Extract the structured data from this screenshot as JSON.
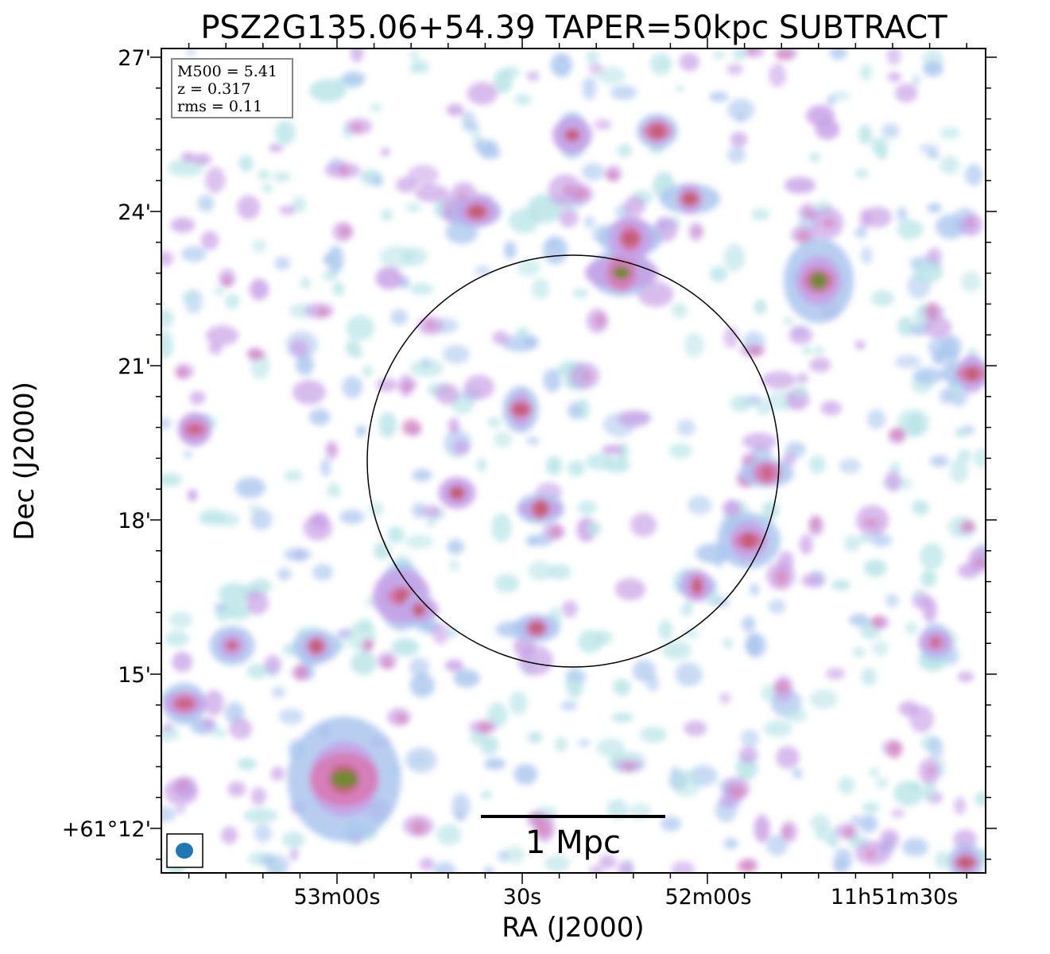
{
  "chart_data": {
    "type": "heatmap",
    "title": "PSZ2G135.06+54.39 TAPER=50kpc SUBTRACT",
    "xlabel": "RA (J2000)",
    "ylabel": "Dec (J2000)",
    "x_ticks": [
      "53m00s",
      "30s",
      "52m00s",
      "11h51m30s"
    ],
    "y_ticks": [
      "27'",
      "24'",
      "21'",
      "18'",
      "15'",
      "+61°12'"
    ],
    "info": {
      "m500": "M500 = 5.41",
      "z": "z = 0.317",
      "rms": "rms = 0.11"
    },
    "scalebar_label": "1 Mpc",
    "colors": {
      "low": "#b8e4e6",
      "mid_low": "#aac6ee",
      "mid": "#c7a0e6",
      "mid_high": "#d77ab3",
      "high": "#c25a6e",
      "peak": "#6f8a2e",
      "beam": "#1f77b4"
    },
    "emission_peaks_note": "",
    "circle": true
  }
}
